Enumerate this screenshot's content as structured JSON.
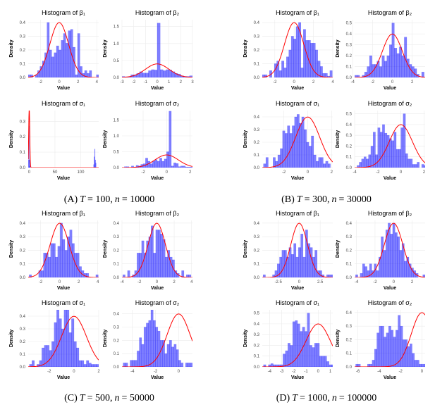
{
  "colors": {
    "bar_fill": "#0000ff",
    "bar_opacity": 0.5,
    "curve": "#ff0000",
    "grid": "#ebebeb"
  },
  "captions": [
    {
      "label": "(A)",
      "t_var": "T",
      "t_val": "= 100,",
      "n_var": "n",
      "n_val": "= 10000"
    },
    {
      "label": "(B)",
      "t_var": "T",
      "t_val": "= 300,",
      "n_var": "n",
      "n_val": "= 30000"
    },
    {
      "label": "(C)",
      "t_var": "T",
      "t_val": "= 500,",
      "n_var": "n",
      "n_val": "= 50000"
    },
    {
      "label": "(D)",
      "t_var": "T",
      "t_val": "= 1000,",
      "n_var": "n",
      "n_val": "= 100000"
    }
  ],
  "chart_data": [
    {
      "type": "histogram",
      "subfigure": "A",
      "title": "Histogram of β₁",
      "xlabel": "Value",
      "ylabel": "Density",
      "xlim": [
        -3.3,
        4.2
      ],
      "ylim": [
        0,
        0.42
      ],
      "xticks": [
        -2,
        0,
        2,
        4
      ],
      "yticks": [
        0,
        0.1,
        0.2,
        0.3,
        0.4
      ],
      "bin_start": -3.3,
      "bin_width": 0.25,
      "values": [
        0.02,
        0.02,
        0,
        0.02,
        0.05,
        0.08,
        0.12,
        0.18,
        0.4,
        0.2,
        0.15,
        0.18,
        0.23,
        0.2,
        0.27,
        0.32,
        0.25,
        0.34,
        0.35,
        0.22,
        0.02,
        0.32,
        0.08,
        0.03,
        0.05,
        0.03,
        0.05,
        0,
        0,
        0.02
      ],
      "curve": {
        "dist": "normal",
        "mean": 0,
        "sd": 1
      }
    },
    {
      "type": "histogram",
      "subfigure": "A",
      "title": "Histogram of β₂",
      "xlabel": "Value",
      "ylabel": "Density",
      "xlim": [
        -3,
        3
      ],
      "ylim": [
        0,
        1.7
      ],
      "xticks": [
        -3,
        -2,
        -1,
        0,
        1,
        2,
        3
      ],
      "yticks": [
        0,
        0.5,
        1,
        1.5
      ],
      "bin_start": -3,
      "bin_width": 0.25,
      "values": [
        0.03,
        0.02,
        0.02,
        0.08,
        0.08,
        0.12,
        0.17,
        0.13,
        0.13,
        0.2,
        0.23,
        0.22,
        1.6,
        0.23,
        0.2,
        0.23,
        0.22,
        0.17,
        0.12,
        0.1,
        0.05,
        0.03,
        0.03,
        0.05
      ],
      "curve": {
        "dist": "normal",
        "mean": 0,
        "sd": 1
      }
    },
    {
      "type": "histogram",
      "subfigure": "A",
      "title": "Histogram of σ₁",
      "xlabel": "Value",
      "ylabel": "Density",
      "xlim": [
        -2,
        135
      ],
      "ylim": [
        0,
        0.37
      ],
      "xticks": [
        0,
        50,
        100
      ],
      "yticks": [
        0,
        0.1,
        0.2,
        0.3
      ],
      "bin_width": 1,
      "bins": [
        [
          -1.5,
          0.05
        ],
        [
          -1,
          0.27
        ],
        [
          0,
          0.05
        ],
        [
          1,
          0.01
        ],
        [
          125,
          0.02
        ],
        [
          126,
          0.07
        ],
        [
          127,
          0.12
        ],
        [
          128,
          0.05
        ],
        [
          129,
          0.03
        ]
      ],
      "curve": {
        "dist": "normal",
        "mean": 0,
        "sd": 1
      }
    },
    {
      "type": "histogram",
      "subfigure": "A",
      "title": "Histogram of σ₂",
      "xlabel": "Value",
      "ylabel": "Density",
      "xlim": [
        -3.8,
        2.2
      ],
      "ylim": [
        0,
        1.8
      ],
      "xticks": [
        -2,
        0,
        2
      ],
      "yticks": [
        0,
        0.5,
        1,
        1.5
      ],
      "bin_start": -3.6,
      "bin_width": 0.2,
      "values": [
        0.03,
        0.03,
        0,
        0.05,
        0.02,
        0.07,
        0.05,
        0.1,
        0.12,
        0.3,
        0.2,
        0.12,
        0.2,
        0.25,
        0.2,
        0.3,
        0.2,
        0.27,
        0.5,
        1.78,
        0.05,
        0.15,
        0.13,
        0.03,
        0.05,
        0.05,
        0.02,
        0.02,
        0.02
      ],
      "curve": {
        "dist": "normal",
        "mean": 0,
        "sd": 1
      }
    },
    {
      "type": "histogram",
      "subfigure": "B",
      "title": "Histogram of β₁",
      "xlabel": "Value",
      "ylabel": "Density",
      "xlim": [
        -3.3,
        4
      ],
      "ylim": [
        0,
        0.42
      ],
      "xticks": [
        -2,
        0,
        2,
        4
      ],
      "yticks": [
        0,
        0.1,
        0.2,
        0.3,
        0.4
      ],
      "bin_start": -3.3,
      "bin_width": 0.25,
      "values": [
        0.02,
        0.02,
        0,
        0.05,
        0,
        0.1,
        0.12,
        0.05,
        0.12,
        0.07,
        0.15,
        0.2,
        0.3,
        0.28,
        0.37,
        0.4,
        0.07,
        0.35,
        0.27,
        0.27,
        0.25,
        0.25,
        0.2,
        0.12,
        0.08,
        0.03,
        0.03,
        0.01,
        0.05
      ],
      "curve": {
        "dist": "normal",
        "mean": 0,
        "sd": 1
      }
    },
    {
      "type": "histogram",
      "subfigure": "B",
      "title": "Histogram of β₂",
      "xlabel": "Value",
      "ylabel": "Density",
      "xlim": [
        -3.8,
        3.3
      ],
      "ylim": [
        0,
        0.53
      ],
      "xticks": [
        -4,
        -2,
        0,
        2
      ],
      "yticks": [
        0,
        0.1,
        0.2,
        0.3,
        0.4,
        0.5
      ],
      "bin_start": -3.8,
      "bin_width": 0.25,
      "values": [
        0.02,
        0.02,
        0,
        0.02,
        0.05,
        0.1,
        0.2,
        0.12,
        0.12,
        0.15,
        0.1,
        0.2,
        0.15,
        0.2,
        0.3,
        0.5,
        0.27,
        0.22,
        0.28,
        0.2,
        0.37,
        0.17,
        0.12,
        0.1,
        0.08,
        0.03,
        0,
        0.05
      ],
      "curve": {
        "dist": "normal",
        "mean": 0,
        "sd": 1
      }
    },
    {
      "type": "histogram",
      "subfigure": "B",
      "title": "Histogram of σ₁",
      "xlabel": "Value",
      "ylabel": "Density",
      "xlim": [
        -3.8,
        2.1
      ],
      "ylim": [
        0,
        0.45
      ],
      "xticks": [
        -2,
        0,
        2
      ],
      "yticks": [
        0,
        0.1,
        0.2,
        0.3,
        0.4
      ],
      "bin_start": -3.7,
      "bin_width": 0.2,
      "values": [
        0.03,
        0.08,
        0,
        0,
        0.08,
        0.05,
        0.1,
        0.15,
        0.29,
        0.27,
        0.33,
        0.27,
        0.33,
        0.4,
        0.42,
        0.35,
        0.4,
        0.3,
        0.2,
        0.17,
        0.25,
        0.1,
        0.05,
        0.08,
        0.08,
        0.03,
        0.05,
        0.03
      ],
      "curve": {
        "dist": "normal",
        "mean": 0,
        "sd": 1
      }
    },
    {
      "type": "histogram",
      "subfigure": "B",
      "title": "Histogram of σ₂",
      "xlabel": "Value",
      "ylabel": "Density",
      "xlim": [
        -4,
        2.1
      ],
      "ylim": [
        0,
        0.53
      ],
      "xticks": [
        -4,
        -2,
        0,
        2
      ],
      "yticks": [
        0,
        0.1,
        0.2,
        0.3,
        0.4,
        0.5
      ],
      "bin_start": -3.8,
      "bin_width": 0.2,
      "values": [
        0.02,
        0.05,
        0.08,
        0.1,
        0.08,
        0.12,
        0.2,
        0.33,
        0.12,
        0.37,
        0.33,
        0.4,
        0.32,
        0.3,
        0.27,
        0.25,
        0.33,
        0.17,
        0.17,
        0.37,
        0.5,
        0.13,
        0.08,
        0.08,
        0.03,
        0.03,
        0.05,
        0,
        0.03,
        0.02
      ],
      "curve": {
        "dist": "normal",
        "mean": 0,
        "sd": 1
      }
    },
    {
      "type": "histogram",
      "subfigure": "C",
      "title": "Histogram of β₁",
      "xlabel": "Value",
      "ylabel": "Density",
      "xlim": [
        -3.3,
        4.1
      ],
      "ylim": [
        0,
        0.42
      ],
      "xticks": [
        -2,
        0,
        2,
        4
      ],
      "yticks": [
        0,
        0.1,
        0.2,
        0.3,
        0.4
      ],
      "bin_start": -3.2,
      "bin_width": 0.25,
      "values": [
        0.02,
        0,
        0,
        0,
        0.05,
        0.05,
        0.18,
        0.18,
        0.15,
        0.25,
        0.25,
        0.15,
        0.23,
        0.4,
        0.28,
        0.2,
        0.3,
        0.35,
        0.25,
        0.18,
        0.18,
        0.08,
        0.05,
        0.03,
        0.03,
        0,
        0,
        0,
        0.02
      ],
      "curve": {
        "dist": "normal",
        "mean": 0,
        "sd": 1
      }
    },
    {
      "type": "histogram",
      "subfigure": "C",
      "title": "Histogram of β₂",
      "xlabel": "Value",
      "ylabel": "Density",
      "xlim": [
        -4,
        4.1
      ],
      "ylim": [
        0,
        0.42
      ],
      "xticks": [
        -4,
        -2,
        0,
        2,
        4
      ],
      "yticks": [
        0,
        0.1,
        0.2,
        0.3,
        0.4
      ],
      "bin_start": -3.9,
      "bin_width": 0.27,
      "values": [
        0.02,
        0,
        0.05,
        0,
        0.02,
        0.05,
        0.18,
        0.18,
        0.27,
        0.18,
        0.27,
        0.3,
        0.38,
        0.18,
        0.35,
        0.35,
        0.32,
        0.28,
        0.15,
        0.2,
        0.15,
        0.13,
        0.05,
        0.03,
        0,
        0.05,
        0,
        0.02,
        0.02
      ],
      "curve": {
        "dist": "normal",
        "mean": 0,
        "sd": 1
      }
    },
    {
      "type": "histogram",
      "subfigure": "C",
      "title": "Histogram of σ₁",
      "xlabel": "Value",
      "ylabel": "Density",
      "xlim": [
        -3.7,
        2
      ],
      "ylim": [
        0,
        0.45
      ],
      "xticks": [
        -2,
        0,
        2
      ],
      "yticks": [
        0,
        0.1,
        0.2,
        0.3,
        0.4
      ],
      "bin_start": -3.6,
      "bin_width": 0.2,
      "values": [
        0.02,
        0.05,
        0,
        0.02,
        0.05,
        0.15,
        0.17,
        0.17,
        0.13,
        0.2,
        0.35,
        0.45,
        0.38,
        0.3,
        0.45,
        0.45,
        0.27,
        0.38,
        0.2,
        0.15,
        0.05,
        0.05,
        0.02,
        0.05,
        0.03,
        0.02,
        0.02,
        0.02
      ],
      "curve": {
        "dist": "normal",
        "mean": 0,
        "sd": 1
      }
    },
    {
      "type": "histogram",
      "subfigure": "C",
      "title": "Histogram of σ₂",
      "xlabel": "Value",
      "ylabel": "Density",
      "xlim": [
        -4.9,
        1.2
      ],
      "ylim": [
        0,
        0.43
      ],
      "xticks": [
        -4,
        -2,
        0
      ],
      "yticks": [
        0,
        0.1,
        0.2,
        0.3,
        0.4
      ],
      "bin_start": -4.8,
      "bin_width": 0.2,
      "values": [
        0.03,
        0.03,
        0,
        0.05,
        0.05,
        0.05,
        0.12,
        0.22,
        0.17,
        0.3,
        0.33,
        0.35,
        0.43,
        0.35,
        0.3,
        0.27,
        0.2,
        0.2,
        0.1,
        0.17,
        0.2,
        0.15,
        0.17,
        0.13,
        0.05,
        0.03,
        0,
        0.03,
        0.03,
        0.03
      ],
      "curve": {
        "dist": "normal",
        "mean": 0,
        "sd": 1
      }
    },
    {
      "type": "histogram",
      "subfigure": "D",
      "title": "Histogram of β₁",
      "xlabel": "Value",
      "ylabel": "Density",
      "xlim": [
        -4.4,
        4
      ],
      "ylim": [
        0,
        0.42
      ],
      "xticks": [
        -2.5,
        0,
        2.5
      ],
      "yticks": [
        0,
        0.1,
        0.2,
        0.3,
        0.4
      ],
      "bin_start": -4.3,
      "bin_width": 0.28,
      "values": [
        0.02,
        0,
        0,
        0,
        0.02,
        0.05,
        0.1,
        0.15,
        0.2,
        0.2,
        0.15,
        0.22,
        0.17,
        0.25,
        0.15,
        0.22,
        0.32,
        0.15,
        0.35,
        0.25,
        0.22,
        0.15,
        0.2,
        0.05,
        0.05,
        0.02,
        0,
        0.02,
        0.02,
        0.02
      ],
      "curve": {
        "dist": "normal",
        "mean": 0,
        "sd": 1
      }
    },
    {
      "type": "histogram",
      "subfigure": "D",
      "title": "Histogram of β₂",
      "xlabel": "Value",
      "ylabel": "Density",
      "xlim": [
        -4.2,
        3.4
      ],
      "ylim": [
        0,
        0.42
      ],
      "xticks": [
        -4,
        -2,
        0,
        2
      ],
      "yticks": [
        0,
        0.1,
        0.2,
        0.3,
        0.4
      ],
      "bin_start": -4.1,
      "bin_width": 0.25,
      "values": [
        0.02,
        0,
        0.03,
        0.1,
        0.08,
        0.05,
        0.1,
        0.05,
        0.1,
        0.05,
        0.15,
        0.3,
        0.2,
        0.35,
        0.4,
        0.32,
        0.4,
        0.33,
        0.3,
        0.2,
        0.25,
        0.12,
        0.15,
        0.1,
        0.07,
        0.05,
        0.03,
        0,
        0,
        0.02
      ],
      "curve": {
        "dist": "normal",
        "mean": 0,
        "sd": 1
      }
    },
    {
      "type": "histogram",
      "subfigure": "D",
      "title": "Histogram of σ₁",
      "xlabel": "Value",
      "ylabel": "Density",
      "xlim": [
        -4.6,
        1.2
      ],
      "ylim": [
        0,
        0.53
      ],
      "xticks": [
        -4,
        -3,
        -2,
        -1,
        0,
        1
      ],
      "yticks": [
        0,
        0.1,
        0.2,
        0.3,
        0.4,
        0.5
      ],
      "bin_start": -4.5,
      "bin_width": 0.2,
      "values": [
        0.02,
        0,
        0.02,
        0.03,
        0.02,
        0.02,
        0.02,
        0.02,
        0.12,
        0.15,
        0.22,
        0.2,
        0.42,
        0.43,
        0.4,
        0.33,
        0.37,
        0.33,
        0.5,
        0.2,
        0.18,
        0.22,
        0.22,
        0.1,
        0.1,
        0.1,
        0.05,
        0.02,
        0.02
      ],
      "curve": {
        "dist": "normal",
        "mean": 0,
        "sd": 1
      }
    },
    {
      "type": "histogram",
      "subfigure": "D",
      "title": "Histogram of σ₂",
      "xlabel": "Value",
      "ylabel": "Density",
      "xlim": [
        -6.3,
        0.3
      ],
      "ylim": [
        0,
        0.42
      ],
      "xticks": [
        -6,
        -4,
        -2,
        0
      ],
      "yticks": [
        0,
        0.1,
        0.2,
        0.3,
        0.4
      ],
      "bin_start": -6.2,
      "bin_width": 0.22,
      "values": [
        0.02,
        0.02,
        0,
        0,
        0,
        0.02,
        0.02,
        0.05,
        0.13,
        0.25,
        0.3,
        0.3,
        0.22,
        0.25,
        0.3,
        0.27,
        0.22,
        0.27,
        0.38,
        0.3,
        0.2,
        0.2,
        0.15,
        0.17,
        0.1,
        0.05,
        0.05,
        0.02,
        0.02,
        0.02
      ],
      "curve": {
        "dist": "normal",
        "mean": 0,
        "sd": 1
      }
    }
  ]
}
